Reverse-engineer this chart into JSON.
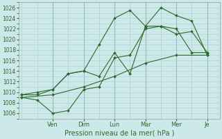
{
  "title": "",
  "xlabel": "Pression niveau de la mer( hPa )",
  "ylabel": "",
  "bg_color": "#cce8e8",
  "grid_color": "#aacccc",
  "grid_major_color": "#99bbbb",
  "line_color": "#2d6a2d",
  "ylim": [
    1005.5,
    1027
  ],
  "yticks": [
    1006,
    1008,
    1010,
    1012,
    1014,
    1016,
    1018,
    1020,
    1022,
    1024,
    1026
  ],
  "x_tick_positions": [
    2,
    4,
    6,
    8,
    10,
    12
  ],
  "x_tick_labels": [
    "Ven",
    "Dim",
    "Lun",
    "Mar",
    "Mer",
    "Je"
  ],
  "xlim": [
    -0.2,
    12.8
  ],
  "series": [
    {
      "x": [
        0,
        2,
        4,
        6,
        8,
        10,
        12
      ],
      "y": [
        1009.0,
        1009.5,
        1011.0,
        1013.0,
        1015.5,
        1017.0,
        1017.0
      ]
    },
    {
      "x": [
        0,
        1,
        2,
        3,
        4,
        5,
        6,
        7,
        8,
        9,
        10,
        11,
        12
      ],
      "y": [
        1009.0,
        1008.5,
        1006.0,
        1006.5,
        1010.5,
        1011.0,
        1016.5,
        1017.0,
        1022.0,
        1022.5,
        1022.0,
        1017.5,
        1017.5
      ]
    },
    {
      "x": [
        0,
        1,
        2,
        3,
        4,
        5,
        6,
        7,
        8,
        9,
        10,
        11,
        12
      ],
      "y": [
        1009.5,
        1009.5,
        1010.5,
        1013.5,
        1014.0,
        1013.0,
        1017.5,
        1013.5,
        1022.5,
        1022.5,
        1021.0,
        1021.5,
        1017.5
      ]
    },
    {
      "x": [
        0,
        1,
        2,
        3,
        4,
        5,
        6,
        7,
        8,
        9,
        10,
        11,
        12
      ],
      "y": [
        1009.5,
        1010.0,
        1010.5,
        1013.5,
        1014.0,
        1019.0,
        1024.0,
        1025.5,
        1022.5,
        1026.0,
        1024.5,
        1023.5,
        1017.0
      ]
    }
  ]
}
